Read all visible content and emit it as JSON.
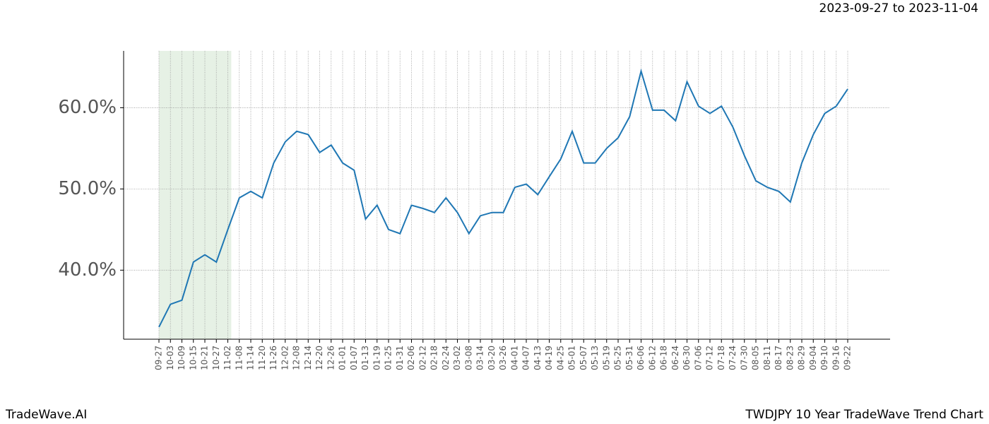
{
  "chart_data": {
    "type": "line",
    "subtitle": "2023-09-27 to 2023-11-04",
    "footer_left": "TradeWave.AI",
    "footer_right": "TWDJPY 10 Year TradeWave Trend Chart",
    "categories": [
      "09-27",
      "10-03",
      "10-09",
      "10-15",
      "10-21",
      "10-27",
      "11-02",
      "11-08",
      "11-14",
      "11-20",
      "11-26",
      "12-02",
      "12-08",
      "12-14",
      "12-20",
      "12-26",
      "01-01",
      "01-07",
      "01-13",
      "01-19",
      "01-25",
      "01-31",
      "02-06",
      "02-12",
      "02-18",
      "02-24",
      "03-02",
      "03-08",
      "03-14",
      "03-20",
      "03-26",
      "04-01",
      "04-07",
      "04-13",
      "04-19",
      "04-25",
      "05-01",
      "05-07",
      "05-13",
      "05-19",
      "05-25",
      "05-31",
      "06-06",
      "06-12",
      "06-18",
      "06-24",
      "06-30",
      "07-06",
      "07-12",
      "07-18",
      "07-24",
      "07-30",
      "08-05",
      "08-11",
      "08-17",
      "08-23",
      "08-29",
      "09-04",
      "09-10",
      "09-16",
      "09-22"
    ],
    "values": [
      33.0,
      35.8,
      36.3,
      41.0,
      41.9,
      41.0,
      45.0,
      48.9,
      49.7,
      48.9,
      53.2,
      55.8,
      57.1,
      56.7,
      54.5,
      55.4,
      53.2,
      52.3,
      46.3,
      48.0,
      45.0,
      44.5,
      48.0,
      47.6,
      47.1,
      48.9,
      47.1,
      44.5,
      46.7,
      47.1,
      47.1,
      50.2,
      50.6,
      49.3,
      51.5,
      53.7,
      57.1,
      53.2,
      53.2,
      55.0,
      56.3,
      58.9,
      64.5,
      59.7,
      59.7,
      58.4,
      63.2,
      60.2,
      59.3,
      60.2,
      57.6,
      54.1,
      51.0,
      50.2,
      49.7,
      48.4,
      53.2,
      56.7,
      59.3,
      60.2,
      62.3
    ],
    "color": "#1f77b4",
    "highlight_range": [
      0,
      6.3
    ],
    "highlight_color": "#d5e8d4",
    "ylim": [
      31.5,
      67
    ],
    "yticks": [
      {
        "value": 40,
        "label": "40.0%"
      },
      {
        "value": 50,
        "label": "50.0%"
      },
      {
        "value": 60,
        "label": "60.0%"
      }
    ],
    "grid": true
  }
}
